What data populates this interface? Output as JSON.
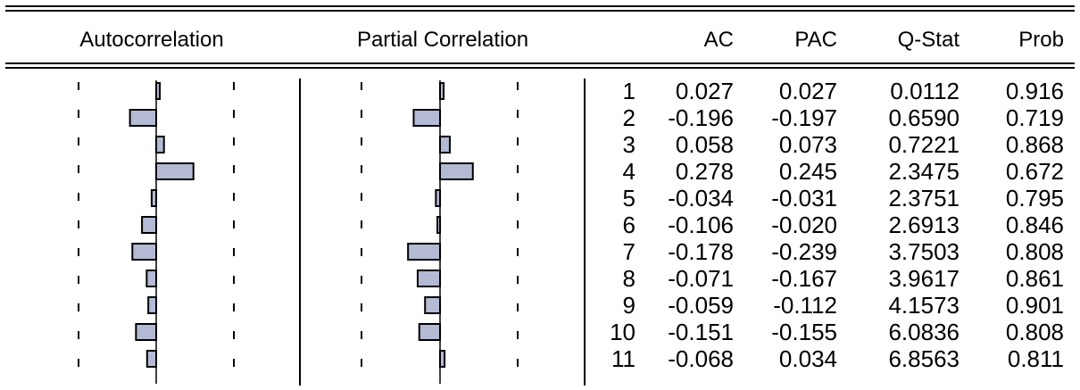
{
  "chart_data": {
    "type": "table",
    "columns": {
      "acf_plot": "Autocorrelation",
      "pacf_plot": "Partial Correlation",
      "lag": "",
      "ac": "AC",
      "pac": "PAC",
      "qstat": "Q-Stat",
      "prob": "Prob"
    },
    "rows": [
      {
        "lag": "1",
        "ac": "0.027",
        "pac": "0.027",
        "qstat": "0.0112",
        "prob": "0.916"
      },
      {
        "lag": "2",
        "ac": "-0.196",
        "pac": "-0.197",
        "qstat": "0.6590",
        "prob": "0.719"
      },
      {
        "lag": "3",
        "ac": "0.058",
        "pac": "0.073",
        "qstat": "0.7221",
        "prob": "0.868"
      },
      {
        "lag": "4",
        "ac": "0.278",
        "pac": "0.245",
        "qstat": "2.3475",
        "prob": "0.672"
      },
      {
        "lag": "5",
        "ac": "-0.034",
        "pac": "-0.031",
        "qstat": "2.3751",
        "prob": "0.795"
      },
      {
        "lag": "6",
        "ac": "-0.106",
        "pac": "-0.020",
        "qstat": "2.6913",
        "prob": "0.846"
      },
      {
        "lag": "7",
        "ac": "-0.178",
        "pac": "-0.239",
        "qstat": "3.7503",
        "prob": "0.808"
      },
      {
        "lag": "8",
        "ac": "-0.071",
        "pac": "-0.167",
        "qstat": "3.9617",
        "prob": "0.861"
      },
      {
        "lag": "9",
        "ac": "-0.059",
        "pac": "-0.112",
        "qstat": "4.1573",
        "prob": "0.901"
      },
      {
        "lag": "10",
        "ac": "-0.151",
        "pac": "-0.155",
        "qstat": "6.0836",
        "prob": "0.808"
      },
      {
        "lag": "11",
        "ac": "-0.068",
        "pac": "0.034",
        "qstat": "6.8563",
        "prob": "0.811"
      }
    ],
    "bar_color": "#b4b9d4",
    "bar_outline": "#000000"
  }
}
